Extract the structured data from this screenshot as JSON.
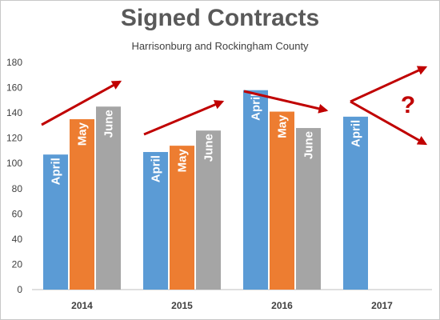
{
  "chart_data": {
    "type": "bar",
    "title": "Signed Contracts",
    "subtitle": "Harrisonburg and Rockingham County",
    "categories": [
      "2014",
      "2015",
      "2016",
      "2017"
    ],
    "series": [
      {
        "name": "April",
        "values": [
          107,
          109,
          158,
          137
        ],
        "color": "#5b9bd5"
      },
      {
        "name": "May",
        "values": [
          135,
          114,
          141,
          null
        ],
        "color": "#ed7d31"
      },
      {
        "name": "June",
        "values": [
          145,
          126,
          128,
          null
        ],
        "color": "#a5a5a5"
      }
    ],
    "ylim": [
      0,
      180
    ],
    "yticks": [
      0,
      20,
      40,
      60,
      80,
      100,
      120,
      140,
      160,
      180
    ],
    "grid": false,
    "legend": "none",
    "bar_labels": "series name inside bar, rotated",
    "annotations": {
      "trend_arrows": [
        {
          "from_category": "2014",
          "direction": "up"
        },
        {
          "from_category": "2015",
          "direction": "up"
        },
        {
          "from_category": "2016",
          "direction": "down"
        },
        {
          "from_category": "2017",
          "direction": "up or down"
        }
      ],
      "question_mark": "?",
      "arrow_color": "#c00000"
    }
  }
}
